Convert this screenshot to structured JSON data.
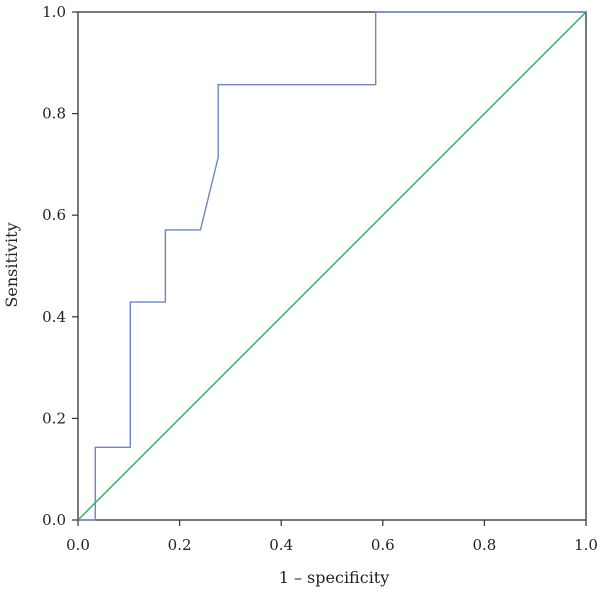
{
  "chart_data": {
    "type": "line",
    "title": "",
    "xlabel": "1 – specificity",
    "ylabel": "Sensitivity",
    "xlim": [
      0,
      1
    ],
    "ylim": [
      0,
      1
    ],
    "grid": false,
    "legend": "none",
    "x_ticks": [
      0.0,
      0.2,
      0.4,
      0.6,
      0.8,
      1.0
    ],
    "x_tick_labels": [
      "0.0",
      "0.2",
      "0.4",
      "0.6",
      "0.8",
      "1.0"
    ],
    "y_ticks": [
      0.0,
      0.2,
      0.4,
      0.6,
      0.8,
      1.0
    ],
    "y_tick_labels": [
      "0.0",
      "0.2",
      "0.4",
      "0.6",
      "0.8",
      "1.0"
    ],
    "series": [
      {
        "color": "#6f86bf",
        "points": [
          [
            0.0,
            0.0
          ],
          [
            0.034,
            0.0
          ],
          [
            0.034,
            0.143
          ],
          [
            0.103,
            0.143
          ],
          [
            0.103,
            0.429
          ],
          [
            0.172,
            0.429
          ],
          [
            0.172,
            0.571
          ],
          [
            0.241,
            0.571
          ],
          [
            0.276,
            0.714
          ],
          [
            0.276,
            0.857
          ],
          [
            0.586,
            0.857
          ],
          [
            0.586,
            1.0
          ],
          [
            1.0,
            1.0
          ]
        ]
      },
      {
        "color": "#2fae5e",
        "points": [
          [
            0.0,
            0.0
          ],
          [
            1.0,
            1.0
          ]
        ]
      }
    ]
  }
}
